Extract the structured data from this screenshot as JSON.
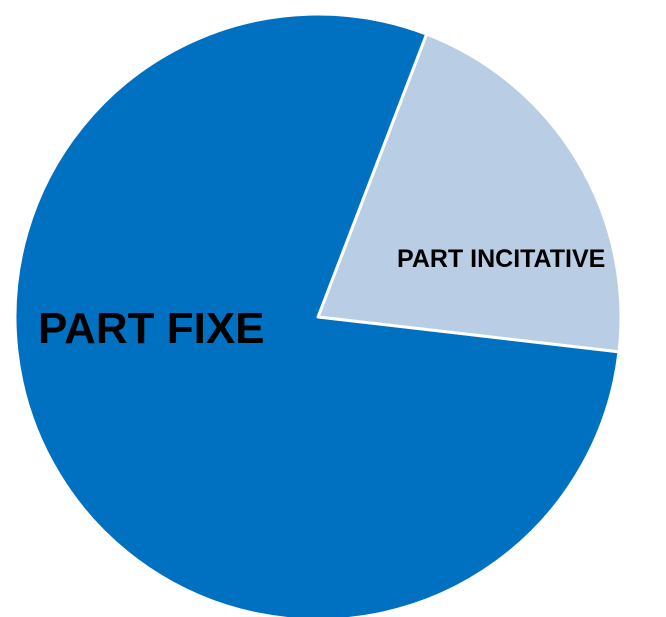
{
  "chart_data": {
    "type": "pie",
    "title": "",
    "start_angle_deg": 21,
    "direction": "clockwise",
    "slices": [
      {
        "label": "PART INCITATIVE",
        "value": 21,
        "color": "#b9cde4"
      },
      {
        "label": "PART FIXE",
        "value": 79,
        "color": "#0070c0"
      }
    ],
    "slice_border_color": "#ffffff",
    "legend": "none",
    "data_labels": "category names inside slices"
  }
}
